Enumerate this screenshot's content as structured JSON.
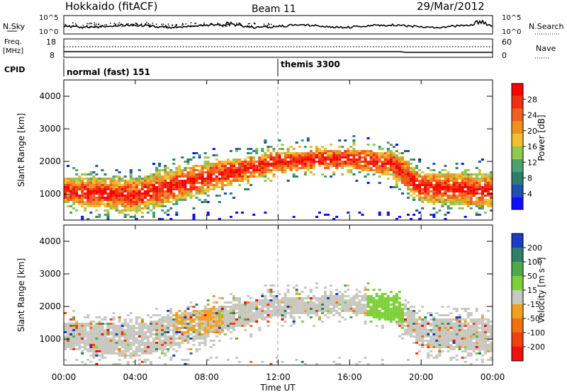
{
  "header": {
    "station": "Hokkaido (fitACF)",
    "beam": "Beam 11",
    "date": "29/Mar/2012"
  },
  "top_panels": {
    "nsky_label": "N.Sky",
    "nsearch_label": "N.Search",
    "freq_label": "Freq.",
    "freq_unit": "[MHz]",
    "nave_label": "Nave",
    "cpid_label": "CPID",
    "nsky_ticks": [
      "10^5",
      "10^0"
    ],
    "nsearch_ticks": [
      "10^5",
      "10^0"
    ],
    "freq_ticks": [
      "18",
      "8"
    ],
    "nave_ticks": [
      "60",
      "0"
    ],
    "cpid_segments": [
      {
        "label": "normal (fast) 151",
        "start_hour": 0
      },
      {
        "label": "themis 3300",
        "start_hour": 12
      }
    ]
  },
  "chart_data": [
    {
      "type": "heatmap",
      "name": "power",
      "ylabel": "Slant Range [km]",
      "ylim": [
        200,
        4500
      ],
      "yticks": [
        1000,
        2000,
        3000,
        4000
      ],
      "xlim": [
        0,
        24
      ],
      "colorbar": {
        "label": "Power [dB]",
        "ticks": [
          "4",
          "8",
          "12",
          "16",
          "20",
          "24",
          "28"
        ],
        "colors": [
          "#1010ff",
          "#2050b0",
          "#2e7f6a",
          "#4fa070",
          "#90c850",
          "#f0c030",
          "#f09020",
          "#f06020",
          "#f03010",
          "#ff0000"
        ],
        "range": [
          0,
          32
        ]
      },
      "features": [
        {
          "x_hours": [
            0,
            4,
            8,
            12,
            16,
            18.5,
            20,
            24
          ],
          "range_km": [
            1100,
            950,
            1500,
            2000,
            2100,
            1900,
            1200,
            1100
          ]
        }
      ]
    },
    {
      "type": "heatmap",
      "name": "velocity",
      "ylabel": "Slant Range [km]",
      "ylim": [
        200,
        4500
      ],
      "yticks": [
        1000,
        2000,
        3000,
        4000
      ],
      "xlim": [
        0,
        24
      ],
      "colorbar": {
        "label": "Velocity [m s⁻¹]",
        "ticks": [
          "200",
          "100",
          "50",
          "15",
          "-15",
          "-50",
          "-100",
          "-200"
        ],
        "colors": [
          "#1a3cc8",
          "#2f7f6a",
          "#4fa84a",
          "#7ed03a",
          "#c8c8c0",
          "#f0a020",
          "#f07010",
          "#f04010",
          "#f01010"
        ],
        "range": [
          -250,
          250
        ]
      }
    }
  ],
  "xaxis": {
    "label": "Time UT",
    "ticks": [
      "00:00",
      "04:00",
      "08:00",
      "12:00",
      "16:00",
      "20:00",
      "00:00"
    ],
    "tick_hours": [
      0,
      4,
      8,
      12,
      16,
      20,
      24
    ]
  }
}
